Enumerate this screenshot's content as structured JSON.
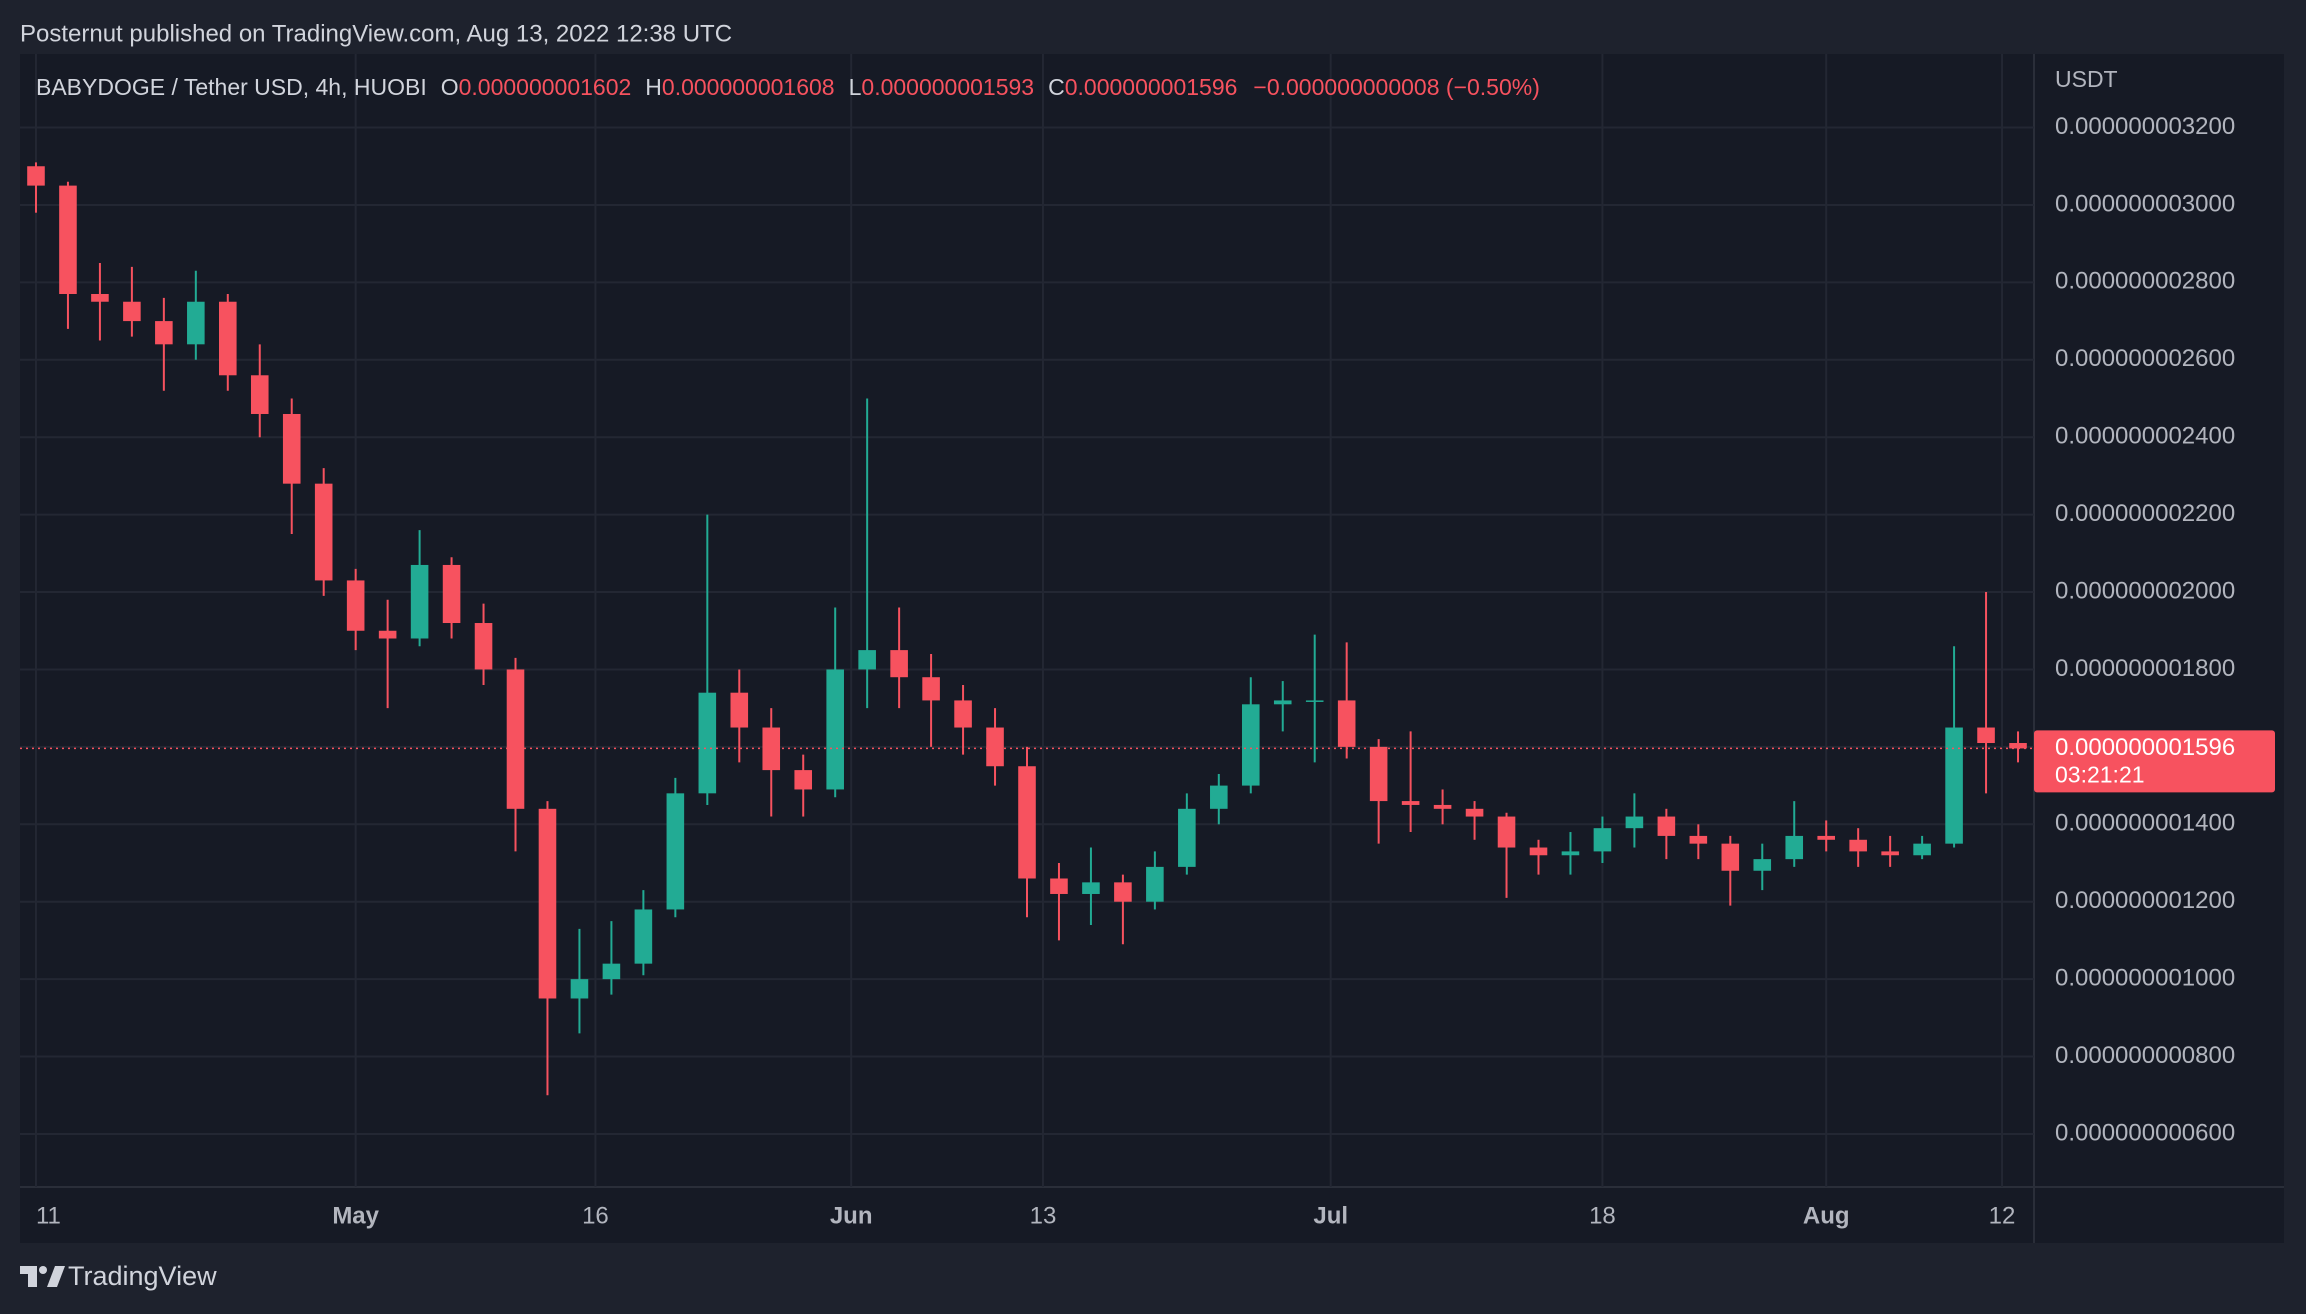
{
  "page": {
    "published": "Posternut published on TradingView.com, Aug 13, 2022 12:38 UTC",
    "footer": "TradingView"
  },
  "chart_data": {
    "type": "candlestick",
    "title": "BABYDOGE / Tether USD, 4h, HUOBI",
    "ohlc_header": [
      {
        "key": "O",
        "value": 1.602e-09,
        "label": "0.000000001602"
      },
      {
        "key": "H",
        "value": 1.608e-09,
        "label": "0.000000001608"
      },
      {
        "key": "L",
        "value": 1.593e-09,
        "label": "0.000000001593"
      },
      {
        "key": "C",
        "value": 1.596e-09,
        "label": "0.000000001596"
      }
    ],
    "change": "−0.000000000008 (−0.50%)",
    "y_axis_label": "USDT",
    "x": [
      "2022-04-11",
      "2022-04-13",
      "2022-04-15",
      "2022-04-17",
      "2022-04-19",
      "2022-04-21",
      "2022-04-23",
      "2022-04-25",
      "2022-04-27",
      "2022-04-29",
      "2022-05-01",
      "2022-05-03",
      "2022-05-05",
      "2022-05-07",
      "2022-05-09",
      "2022-05-11",
      "2022-05-13",
      "2022-05-15",
      "2022-05-17",
      "2022-05-19",
      "2022-05-21",
      "2022-05-23",
      "2022-05-25",
      "2022-05-27",
      "2022-05-29",
      "2022-05-31",
      "2022-06-02",
      "2022-06-04",
      "2022-06-06",
      "2022-06-08",
      "2022-06-10",
      "2022-06-12",
      "2022-06-14",
      "2022-06-16",
      "2022-06-18",
      "2022-06-20",
      "2022-06-22",
      "2022-06-24",
      "2022-06-26",
      "2022-06-28",
      "2022-06-30",
      "2022-07-02",
      "2022-07-04",
      "2022-07-06",
      "2022-07-08",
      "2022-07-10",
      "2022-07-12",
      "2022-07-14",
      "2022-07-16",
      "2022-07-18",
      "2022-07-20",
      "2022-07-22",
      "2022-07-24",
      "2022-07-26",
      "2022-07-28",
      "2022-07-30",
      "2022-08-01",
      "2022-08-03",
      "2022-08-05",
      "2022-08-07",
      "2022-08-09",
      "2022-08-11",
      "2022-08-13"
    ],
    "open": [
      3.1e-09,
      3.05e-09,
      2.77e-09,
      2.75e-09,
      2.7e-09,
      2.64e-09,
      2.75e-09,
      2.56e-09,
      2.46e-09,
      2.28e-09,
      2.03e-09,
      1.9e-09,
      1.88e-09,
      2.07e-09,
      1.92e-09,
      1.8e-09,
      1.44e-09,
      9.5e-10,
      1e-09,
      1.04e-09,
      1.18e-09,
      1.48e-09,
      1.74e-09,
      1.65e-09,
      1.54e-09,
      1.49e-09,
      1.8e-09,
      1.85e-09,
      1.78e-09,
      1.72e-09,
      1.65e-09,
      1.55e-09,
      1.26e-09,
      1.22e-09,
      1.25e-09,
      1.2e-09,
      1.29e-09,
      1.44e-09,
      1.5e-09,
      1.71e-09,
      1.72e-09,
      1.72e-09,
      1.6e-09,
      1.46e-09,
      1.45e-09,
      1.44e-09,
      1.42e-09,
      1.34e-09,
      1.32e-09,
      1.33e-09,
      1.39e-09,
      1.42e-09,
      1.37e-09,
      1.35e-09,
      1.28e-09,
      1.31e-09,
      1.37e-09,
      1.36e-09,
      1.33e-09,
      1.32e-09,
      1.35e-09,
      1.65e-09,
      1.61e-09
    ],
    "high": [
      3.11e-09,
      3.06e-09,
      2.85e-09,
      2.84e-09,
      2.76e-09,
      2.83e-09,
      2.77e-09,
      2.64e-09,
      2.5e-09,
      2.32e-09,
      2.06e-09,
      1.98e-09,
      2.16e-09,
      2.09e-09,
      1.97e-09,
      1.83e-09,
      1.46e-09,
      1.13e-09,
      1.15e-09,
      1.23e-09,
      1.52e-09,
      2.2e-09,
      1.8e-09,
      1.7e-09,
      1.58e-09,
      1.96e-09,
      2.5e-09,
      1.96e-09,
      1.84e-09,
      1.76e-09,
      1.7e-09,
      1.6e-09,
      1.3e-09,
      1.34e-09,
      1.27e-09,
      1.33e-09,
      1.48e-09,
      1.53e-09,
      1.78e-09,
      1.77e-09,
      1.89e-09,
      1.87e-09,
      1.62e-09,
      1.64e-09,
      1.49e-09,
      1.46e-09,
      1.43e-09,
      1.36e-09,
      1.38e-09,
      1.42e-09,
      1.48e-09,
      1.44e-09,
      1.4e-09,
      1.37e-09,
      1.35e-09,
      1.46e-09,
      1.41e-09,
      1.39e-09,
      1.37e-09,
      1.37e-09,
      1.86e-09,
      2e-09,
      1.64e-09
    ],
    "low": [
      2.98e-09,
      2.68e-09,
      2.65e-09,
      2.66e-09,
      2.52e-09,
      2.6e-09,
      2.52e-09,
      2.4e-09,
      2.15e-09,
      1.99e-09,
      1.85e-09,
      1.7e-09,
      1.86e-09,
      1.88e-09,
      1.76e-09,
      1.33e-09,
      7e-10,
      8.6e-10,
      9.6e-10,
      1.01e-09,
      1.16e-09,
      1.45e-09,
      1.56e-09,
      1.42e-09,
      1.42e-09,
      1.47e-09,
      1.7e-09,
      1.7e-09,
      1.6e-09,
      1.58e-09,
      1.5e-09,
      1.16e-09,
      1.1e-09,
      1.14e-09,
      1.09e-09,
      1.18e-09,
      1.27e-09,
      1.4e-09,
      1.48e-09,
      1.64e-09,
      1.56e-09,
      1.57e-09,
      1.35e-09,
      1.38e-09,
      1.4e-09,
      1.36e-09,
      1.21e-09,
      1.27e-09,
      1.27e-09,
      1.3e-09,
      1.34e-09,
      1.31e-09,
      1.31e-09,
      1.19e-09,
      1.23e-09,
      1.29e-09,
      1.33e-09,
      1.29e-09,
      1.29e-09,
      1.31e-09,
      1.34e-09,
      1.48e-09,
      1.56e-09
    ],
    "close": [
      3.05e-09,
      2.77e-09,
      2.75e-09,
      2.7e-09,
      2.64e-09,
      2.75e-09,
      2.56e-09,
      2.46e-09,
      2.28e-09,
      2.03e-09,
      1.9e-09,
      1.88e-09,
      2.07e-09,
      1.92e-09,
      1.8e-09,
      1.44e-09,
      9.5e-10,
      1e-09,
      1.04e-09,
      1.18e-09,
      1.48e-09,
      1.74e-09,
      1.65e-09,
      1.54e-09,
      1.49e-09,
      1.8e-09,
      1.85e-09,
      1.78e-09,
      1.72e-09,
      1.65e-09,
      1.55e-09,
      1.26e-09,
      1.22e-09,
      1.25e-09,
      1.2e-09,
      1.29e-09,
      1.44e-09,
      1.5e-09,
      1.71e-09,
      1.72e-09,
      1.72e-09,
      1.6e-09,
      1.46e-09,
      1.45e-09,
      1.44e-09,
      1.42e-09,
      1.34e-09,
      1.32e-09,
      1.33e-09,
      1.39e-09,
      1.42e-09,
      1.37e-09,
      1.35e-09,
      1.28e-09,
      1.31e-09,
      1.37e-09,
      1.36e-09,
      1.33e-09,
      1.32e-09,
      1.35e-09,
      1.65e-09,
      1.61e-09,
      1.596e-09
    ],
    "up_color": "#22ab94",
    "down_color": "#f7525f",
    "xlim": [
      "2022-04-10",
      "2022-08-14"
    ],
    "xticks": [
      {
        "value": "2022-04-11",
        "label": "11"
      },
      {
        "value": "2022-05-01",
        "label": "May"
      },
      {
        "value": "2022-05-16",
        "label": "16"
      },
      {
        "value": "2022-06-01",
        "label": "Jun"
      },
      {
        "value": "2022-06-13",
        "label": "13"
      },
      {
        "value": "2022-07-01",
        "label": "Jul"
      },
      {
        "value": "2022-07-18",
        "label": "18"
      },
      {
        "value": "2022-08-01",
        "label": "Aug"
      },
      {
        "value": "2022-08-12",
        "label": "12"
      }
    ],
    "ylim": [
      4.63e-10,
      3.39e-09
    ],
    "yticks": [
      {
        "value": 6e-10,
        "label": "0.000000000600"
      },
      {
        "value": 8e-10,
        "label": "0.000000000800"
      },
      {
        "value": 1e-09,
        "label": "0.000000001000"
      },
      {
        "value": 1.2e-09,
        "label": "0.000000001200"
      },
      {
        "value": 1.4e-09,
        "label": "0.000000001400"
      },
      {
        "value": 1.6e-09,
        "label": "0.000000001600"
      },
      {
        "value": 1.8e-09,
        "label": "0.000000001800"
      },
      {
        "value": 2e-09,
        "label": "0.000000002000"
      },
      {
        "value": 2.2e-09,
        "label": "0.000000002200"
      },
      {
        "value": 2.4e-09,
        "label": "0.000000002400"
      },
      {
        "value": 2.6e-09,
        "label": "0.000000002600"
      },
      {
        "value": 2.8e-09,
        "label": "0.000000002800"
      },
      {
        "value": 3e-09,
        "label": "0.000000003000"
      },
      {
        "value": 3.2e-09,
        "label": "0.000000003200"
      }
    ],
    "last_price": {
      "value": 1.596e-09,
      "label": "0.000000001596"
    },
    "countdown": "03:21:21",
    "grid": true
  }
}
